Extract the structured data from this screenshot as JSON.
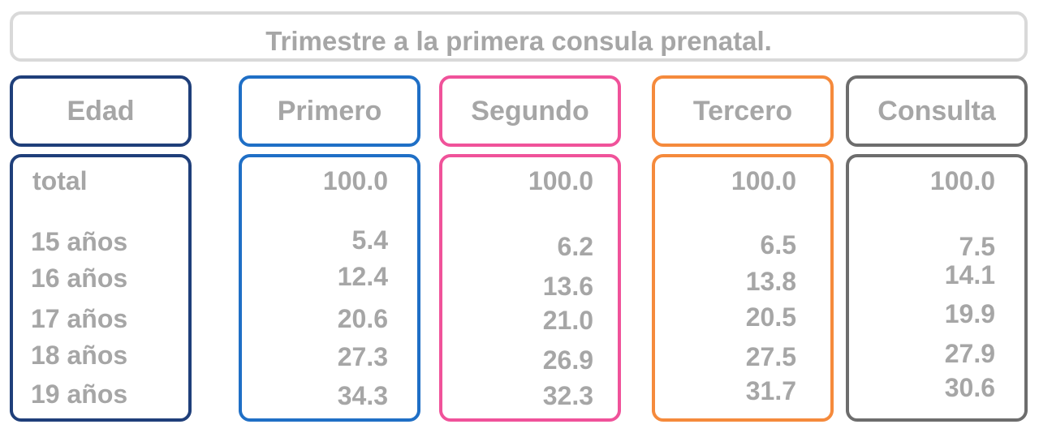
{
  "chart_data": {
    "type": "table",
    "title": "Trimestre a la primera consula prenatal.",
    "columns": [
      {
        "key": "edad",
        "label": "Edad",
        "color": "#1f3f7a"
      },
      {
        "key": "primero",
        "label": "Primero",
        "color": "#1f6fc6"
      },
      {
        "key": "segundo",
        "label": "Segundo",
        "color": "#f0529a"
      },
      {
        "key": "tercero",
        "label": "Tercero",
        "color": "#f58a3c"
      },
      {
        "key": "consulta",
        "label": "Consulta",
        "color": "#6d6d6d"
      }
    ],
    "rows": [
      {
        "edad": "total",
        "primero": "100.0",
        "segundo": "100.0",
        "tercero": "100.0",
        "consulta": "100.0"
      },
      {
        "edad": "15 años",
        "primero": "5.4",
        "segundo": "6.2",
        "tercero": "6.5",
        "consulta": "7.5"
      },
      {
        "edad": "16 años",
        "primero": "12.4",
        "segundo": "13.6",
        "tercero": "13.8",
        "consulta": "14.1"
      },
      {
        "edad": "17 años",
        "primero": "20.6",
        "segundo": "21.0",
        "tercero": "20.5",
        "consulta": "19.9"
      },
      {
        "edad": "18 años",
        "primero": "27.3",
        "segundo": "26.9",
        "tercero": "27.5",
        "consulta": "27.9"
      },
      {
        "edad": "19 años",
        "primero": "34.3",
        "segundo": "32.3",
        "tercero": "31.7",
        "consulta": "30.6"
      }
    ]
  }
}
